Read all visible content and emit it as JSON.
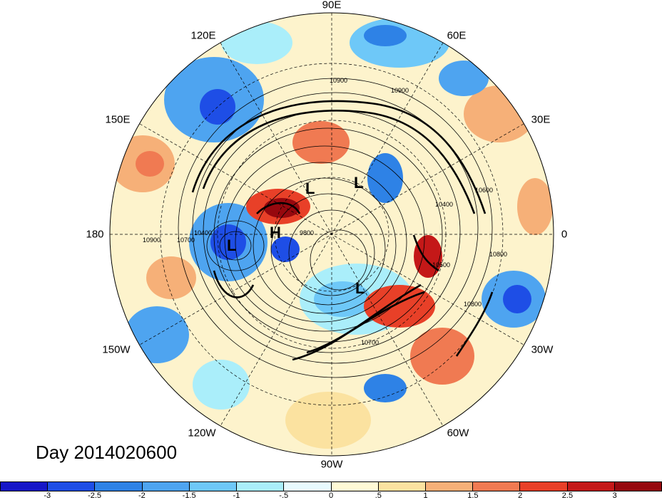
{
  "title": "Day 2014020600",
  "longitude_labels": {
    "lon_90e": "90E",
    "lon_120e": "120E",
    "lon_60e": "60E",
    "lon_150e": "150E",
    "lon_30e": "30E",
    "lon_180": "180",
    "lon_0": "0",
    "lon_150w": "150W",
    "lon_30w": "30W",
    "lon_120w": "120W",
    "lon_60w": "60W",
    "lon_90w": "90W"
  },
  "pressure_systems": [
    "L",
    "L",
    "H",
    "L",
    "L"
  ],
  "contour_labels": [
    "10900",
    "10900",
    "10900",
    "10700",
    "10400",
    "9800",
    "10600",
    "10400",
    "10800",
    "10500",
    "10700",
    "10800"
  ],
  "colorbar": {
    "colors": [
      "#1616c8",
      "#1e4ee6",
      "#2e82e6",
      "#4ea4f0",
      "#6ec8f8",
      "#aaeefa",
      "#e8fafe",
      "#fffad6",
      "#fbe2a0",
      "#f6b078",
      "#f07a52",
      "#e84028",
      "#c41818",
      "#96080e"
    ],
    "ticks": [
      "-3",
      "-2.5",
      "-2",
      "-1.5",
      "-1",
      "-.5",
      "0",
      ".5",
      "1",
      "1.5",
      "2",
      "2.5",
      "3"
    ]
  }
}
